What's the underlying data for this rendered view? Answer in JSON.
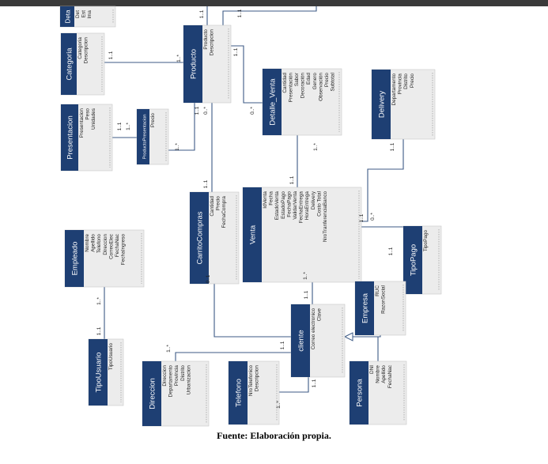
{
  "colors": {
    "header": "#1e3f73",
    "body": "#ececec",
    "line": "#3c5a85"
  },
  "caption": "Fuente: Elaboración propia.",
  "entities": {
    "topleft": {
      "title": "Deta",
      "attributes": [
        "Det",
        "Est",
        "Ima"
      ]
    },
    "categoria": {
      "title": "Categoria",
      "attributes": [
        "Categoria",
        "Descripcion"
      ]
    },
    "producto": {
      "title": "Producto",
      "attributes": [
        "Producto",
        "Descripcion"
      ]
    },
    "detalle_venta": {
      "title": "Detalle_Venta",
      "attributes": [
        "Cantidad",
        "Presentación",
        "Sabor",
        "Decoración",
        "Edad",
        "Genero",
        "Observación",
        "Precio",
        "Subtotal"
      ]
    },
    "delivery": {
      "title": "Delivery",
      "attributes": [
        "Departamento",
        "Provincia",
        "Distrito",
        "Precio"
      ]
    },
    "presentacion": {
      "title": "Presentacion",
      "attributes": [
        "Presentacion",
        "Peso",
        "Unidades"
      ]
    },
    "producto_presentacion": {
      "title": "ProductoPresentacion",
      "attributes": [
        "Precio"
      ]
    },
    "carrito_compras": {
      "title": "CarritoCompras",
      "attributes": [
        "Cantidad",
        "Precio",
        "FechaCompra"
      ]
    },
    "venta": {
      "title": "Venta",
      "attributes": [
        "IdVenta",
        "Fecha",
        "EstadoVenta",
        "EstadoPago",
        "FechaPago",
        "ValidarVenta",
        "FechaEntrega",
        "HoraEntrega",
        "Delivery",
        "Costo Total",
        "NroTranferenciaBanco"
      ]
    },
    "empleado": {
      "title": "Empleado",
      "attributes": [
        "Nombre",
        "Apellido",
        "Telefono",
        "Direccion",
        "CorreoElec",
        "FechaNac",
        "FechaIngreso"
      ]
    },
    "tipo_pago": {
      "title": "TipoPago",
      "attributes": [
        "TipoPago"
      ]
    },
    "empresa": {
      "title": "Empresa",
      "attributes": [
        "RUC",
        "RazonSocial"
      ]
    },
    "cliente": {
      "title": "cliente",
      "attributes": [
        "Correo electronico",
        "Clave"
      ]
    },
    "tipo_usuario": {
      "title": "TipoUsuario",
      "attributes": [
        "TipoUsuario"
      ]
    },
    "direccion": {
      "title": "Direccion",
      "attributes": [
        "Direccion",
        "Departamento",
        "Provincia",
        "Distrito",
        "Urbanizacion"
      ]
    },
    "telefono": {
      "title": "Telefono",
      "attributes": [
        "NroTelefonico",
        "Descripcion"
      ]
    },
    "persona": {
      "title": "Persona",
      "attributes": [
        "DNI",
        "Nombre",
        "Apellido",
        "FechaNac"
      ]
    }
  },
  "multiplicities": {
    "m1": "1..1",
    "m2": "1..*",
    "m3": "1..1",
    "m4": "1..1",
    "m5": "0..*",
    "m6": "1..1",
    "m7": "0..*",
    "m8": "1..1",
    "m9": "1..*",
    "m10": "1..1",
    "m11": "1..*",
    "m12": "1..*",
    "m13": "1..1",
    "m14": "1..1",
    "m15": "1..1",
    "m16": "1..1",
    "m17": "0..*",
    "m18": "0..1",
    "m19": "1..*",
    "m20": "1..1",
    "m21": "1..1",
    "m22": "1..1",
    "m23": "1..*",
    "m24": "1..1",
    "m25": "1..*",
    "m26": "1..1",
    "m27": "1..*"
  }
}
